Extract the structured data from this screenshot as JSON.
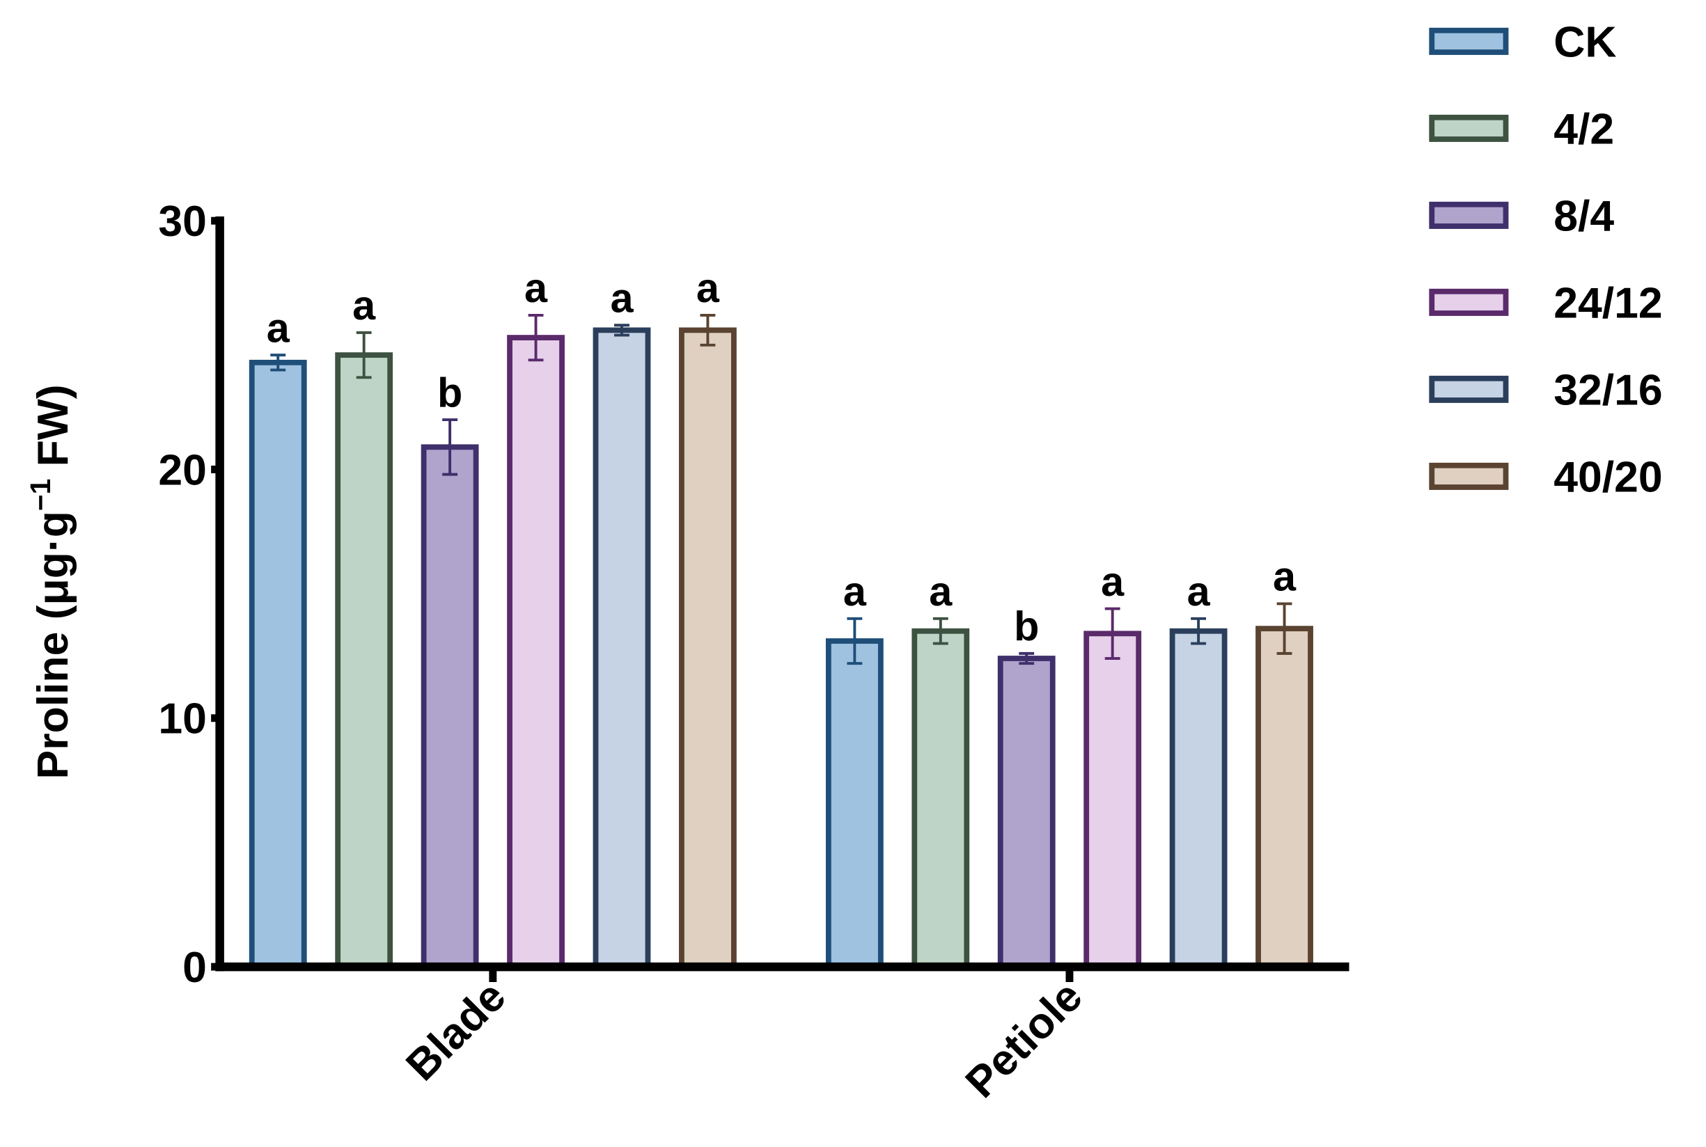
{
  "chart_data": {
    "type": "bar",
    "ylabel": {
      "main": "Proline (μg·g",
      "sup": "−1",
      "tail": " FW)"
    },
    "categories": [
      "Blade",
      "Petiole"
    ],
    "ylim": [
      0,
      30
    ],
    "yticks": [
      0,
      10,
      20,
      30
    ],
    "series": [
      {
        "name": "CK",
        "color": "#9fc2e0",
        "edge": "#1f4e79",
        "values": [
          24.3,
          13.1
        ],
        "errors": [
          0.3,
          0.9
        ],
        "letters": [
          "a",
          "a"
        ]
      },
      {
        "name": "4/2",
        "color": "#bed4c6",
        "edge": "#3d5240",
        "values": [
          24.6,
          13.5
        ],
        "errors": [
          0.9,
          0.5
        ],
        "letters": [
          "a",
          "a"
        ]
      },
      {
        "name": "8/4",
        "color": "#b0a4cd",
        "edge": "#3f2f6b",
        "values": [
          20.9,
          12.4
        ],
        "errors": [
          1.1,
          0.2
        ],
        "letters": [
          "b",
          "b"
        ]
      },
      {
        "name": "24/12",
        "color": "#e6d0ea",
        "edge": "#5a2a6b",
        "values": [
          25.3,
          13.4
        ],
        "errors": [
          0.9,
          1.0
        ],
        "letters": [
          "a",
          "a"
        ]
      },
      {
        "name": "32/16",
        "color": "#c5d3e4",
        "edge": "#2b3f5c",
        "values": [
          25.6,
          13.5
        ],
        "errors": [
          0.2,
          0.5
        ],
        "letters": [
          "a",
          "a"
        ]
      },
      {
        "name": "40/20",
        "color": "#dfd0c2",
        "edge": "#5a4330",
        "values": [
          25.6,
          13.6
        ],
        "errors": [
          0.6,
          1.0
        ],
        "letters": [
          "a",
          "a"
        ]
      }
    ]
  }
}
